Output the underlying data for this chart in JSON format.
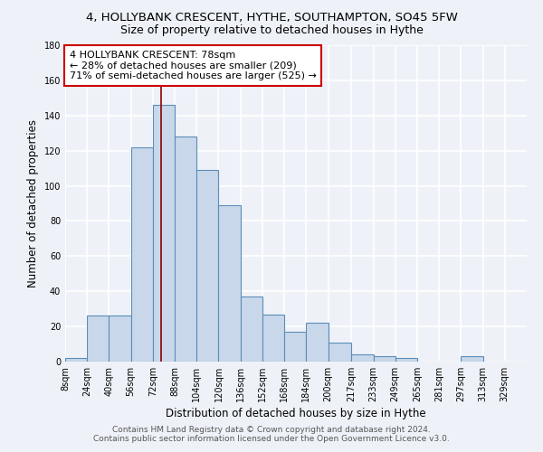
{
  "title": "4, HOLLYBANK CRESCENT, HYTHE, SOUTHAMPTON, SO45 5FW",
  "subtitle": "Size of property relative to detached houses in Hythe",
  "xlabel": "Distribution of detached houses by size in Hythe",
  "ylabel": "Number of detached properties",
  "bin_edges": [
    8,
    24,
    40,
    56,
    72,
    88,
    104,
    120,
    136,
    152,
    168,
    184,
    200,
    217,
    233,
    249,
    265,
    281,
    297,
    313,
    329,
    345
  ],
  "bar_heights": [
    2,
    26,
    26,
    122,
    146,
    128,
    109,
    89,
    37,
    27,
    17,
    22,
    11,
    4,
    3,
    2,
    0,
    0,
    3,
    0,
    0
  ],
  "bar_color": "#c8d8ea",
  "bar_edge_color": "#5b8db8",
  "vline_x": 78,
  "vline_color": "#8b0000",
  "annotation_text": "4 HOLLYBANK CRESCENT: 78sqm\n← 28% of detached houses are smaller (209)\n71% of semi-detached houses are larger (525) →",
  "annotation_box_color": "white",
  "annotation_box_edge": "#cc0000",
  "ylim": [
    0,
    180
  ],
  "yticks": [
    0,
    20,
    40,
    60,
    80,
    100,
    120,
    140,
    160,
    180
  ],
  "xtick_labels": [
    "8sqm",
    "24sqm",
    "40sqm",
    "56sqm",
    "72sqm",
    "88sqm",
    "104sqm",
    "120sqm",
    "136sqm",
    "152sqm",
    "168sqm",
    "184sqm",
    "200sqm",
    "217sqm",
    "233sqm",
    "249sqm",
    "265sqm",
    "281sqm",
    "297sqm",
    "313sqm",
    "329sqm"
  ],
  "footer_line1": "Contains HM Land Registry data © Crown copyright and database right 2024.",
  "footer_line2": "Contains public sector information licensed under the Open Government Licence v3.0.",
  "bg_color": "#eef2f8",
  "grid_color": "white",
  "title_fontsize": 9.5,
  "subtitle_fontsize": 9,
  "axis_label_fontsize": 8.5,
  "tick_fontsize": 7,
  "footer_fontsize": 6.5,
  "annot_fontsize": 8
}
